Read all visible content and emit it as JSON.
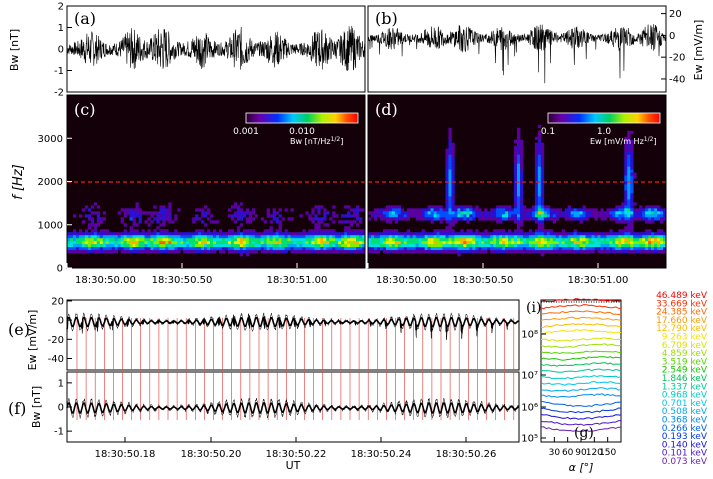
{
  "chart_data": [
    {
      "panel": "(a)",
      "type": "line",
      "ylabel": "Bw [nT]",
      "ylim": [
        -2,
        2
      ],
      "yticks": [
        "2",
        "1",
        "0",
        "-1",
        "-2"
      ],
      "description_values": {
        "typical_amplitude_nT": 0.5,
        "burst_peak_nT": 1.0
      }
    },
    {
      "panel": "(b)",
      "type": "line",
      "ylabel": "Ew [mV/m]",
      "ylim": [
        -50,
        25
      ],
      "yticks": [
        "20",
        "0",
        "-20",
        "-40"
      ],
      "description_values": {
        "typical_amplitude": 10,
        "burst_peak": -45
      }
    },
    {
      "panel": "(c)",
      "type": "heatmap",
      "ylabel": "f [Hz]",
      "ylim": [
        0,
        4000
      ],
      "yticks": [
        "3000",
        "2000",
        "1000",
        "0"
      ],
      "xticks": [
        "18:30:50.00",
        "18:30:50.50",
        "18:30:51.00"
      ],
      "colorbar": {
        "label": "Bw [nT/Hz",
        "label_exp": "1/2",
        "label_end": "]",
        "ticks": [
          "0.001",
          "0.010"
        ]
      },
      "reference_line_hz": 2000,
      "dominant_band_hz": 600
    },
    {
      "panel": "(d)",
      "type": "heatmap",
      "xticks": [
        "18:30:50.00",
        "18:30:50.50",
        "18:30:51.00"
      ],
      "colorbar": {
        "label": "Ew [mV/m Hz",
        "label_exp": "1/2",
        "label_end": "]",
        "ticks": [
          "0.1",
          "1.0"
        ]
      },
      "reference_line_hz": 2000,
      "dominant_band_hz": 600,
      "harmonic_band_hz": 1200
    },
    {
      "panel": "(e)",
      "type": "line",
      "ylabel": "Ew [mV/m]",
      "ylim": [
        -50,
        20
      ],
      "yticks": [
        "20",
        "0",
        "-20",
        "-40"
      ]
    },
    {
      "panel": "(f)",
      "type": "line",
      "ylabel": "Bw [nT]",
      "ylim": [
        -1.5,
        1.5
      ],
      "yticks": [
        "1",
        "0",
        "-1"
      ],
      "xlabel": "UT",
      "xticks": [
        "18:30:50.18",
        "18:30:50.20",
        "18:30:50.22",
        "18:30:50.24",
        "18:30:50.26"
      ]
    },
    {
      "panel": "(i)",
      "sub_label": "(g)",
      "type": "line",
      "xlabel": "α [°]",
      "xlim": [
        0,
        180
      ],
      "xticks": [
        "30",
        "60",
        "90",
        "120",
        "150"
      ],
      "yscale": "log",
      "yticks": [
        "10⁸",
        "10⁷",
        "10⁶",
        "10⁵"
      ],
      "series": [
        {
          "name": "46.489 keV",
          "color": "#ff0000",
          "level": 1.0
        },
        {
          "name": "33.669 keV",
          "color": "#ff2a00",
          "level": 0.955
        },
        {
          "name": "24.385 keV",
          "color": "#ff6a00",
          "level": 0.91
        },
        {
          "name": "17.660 keV",
          "color": "#ff9900",
          "level": 0.865
        },
        {
          "name": "12.790 keV",
          "color": "#ffbb00",
          "level": 0.82
        },
        {
          "name": "9.263 keV",
          "color": "#ffe000",
          "level": 0.775
        },
        {
          "name": "6.709 keV",
          "color": "#d6e600",
          "level": 0.73
        },
        {
          "name": "4.859 keV",
          "color": "#9be000",
          "level": 0.685
        },
        {
          "name": "3.519 keV",
          "color": "#55d400",
          "level": 0.64
        },
        {
          "name": "2.549 keV",
          "color": "#16c400",
          "level": 0.595
        },
        {
          "name": "1.846 keV",
          "color": "#00bf55",
          "level": 0.55
        },
        {
          "name": "1.337 keV",
          "color": "#00c897",
          "level": 0.505
        },
        {
          "name": "0.968 keV",
          "color": "#00ccc8",
          "level": 0.46
        },
        {
          "name": "0.701 keV",
          "color": "#00c6e8",
          "level": 0.415
        },
        {
          "name": "0.508 keV",
          "color": "#00a8ee",
          "level": 0.37
        },
        {
          "name": "0.368 keV",
          "color": "#0088ee",
          "level": 0.325
        },
        {
          "name": "0.266 keV",
          "color": "#0062e8",
          "level": 0.28
        },
        {
          "name": "0.193 keV",
          "color": "#0036e0",
          "level": 0.235
        },
        {
          "name": "0.140 keV",
          "color": "#1a0fd8",
          "level": 0.19
        },
        {
          "name": "0.101 keV",
          "color": "#4a14c8",
          "level": 0.145
        },
        {
          "name": "0.073 keV",
          "color": "#6a1eb8",
          "level": 0.1
        }
      ]
    }
  ]
}
